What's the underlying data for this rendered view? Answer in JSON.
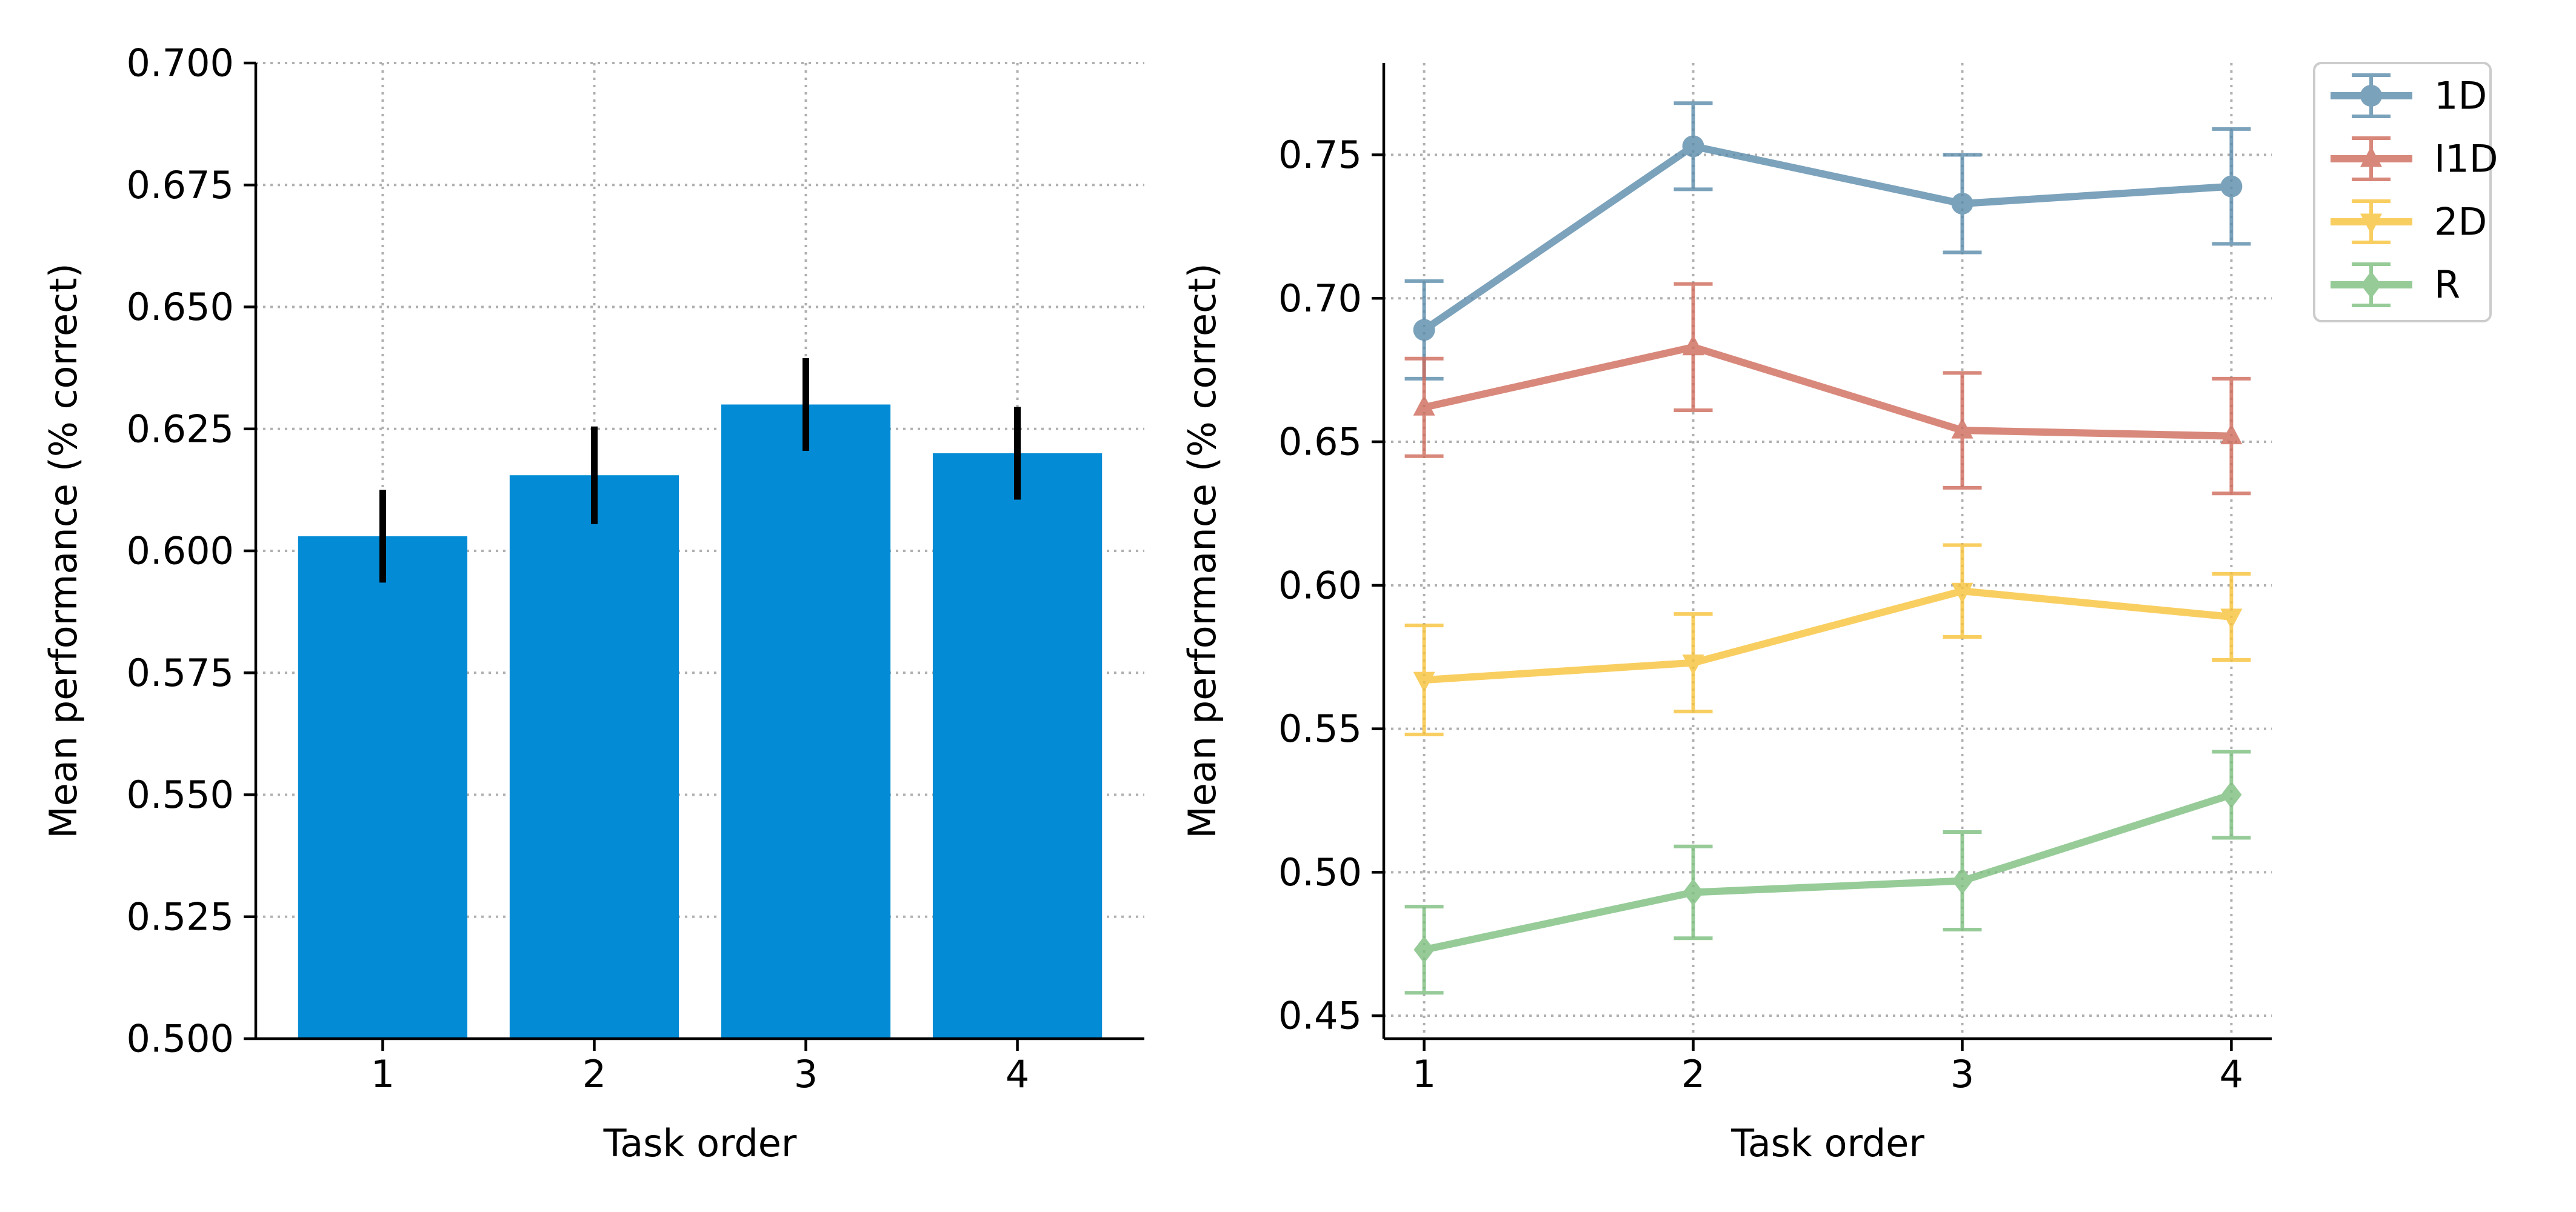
{
  "chart_data": [
    {
      "type": "bar",
      "categories": [
        "1",
        "2",
        "3",
        "4"
      ],
      "values": [
        0.603,
        0.6155,
        0.63,
        0.62
      ],
      "errors": [
        0.0095,
        0.01,
        0.0095,
        0.0095
      ],
      "xlabel": "Task order",
      "ylabel": "Mean performance (% correct)",
      "ylim": [
        0.5,
        0.7
      ],
      "yticks": [
        "0.500",
        "0.525",
        "0.550",
        "0.575",
        "0.600",
        "0.625",
        "0.650",
        "0.675",
        "0.700"
      ],
      "grid": true,
      "colors": {
        "bar": "#038bd5",
        "error": "#000000"
      }
    },
    {
      "type": "line",
      "x": [
        1,
        2,
        3,
        4
      ],
      "xticks": [
        "1",
        "2",
        "3",
        "4"
      ],
      "xlabel": "Task order",
      "ylabel": "Mean performance (% correct)",
      "ylim": [
        0.442,
        0.782
      ],
      "yticks": [
        "0.45",
        "0.50",
        "0.55",
        "0.60",
        "0.65",
        "0.70",
        "0.75"
      ],
      "grid": true,
      "legend": "outside-top-right",
      "series": [
        {
          "name": "1D",
          "marker": "circle",
          "color": "#5b8bab",
          "values": [
            0.689,
            0.753,
            0.733,
            0.739
          ],
          "errors": [
            0.017,
            0.015,
            0.017,
            0.02
          ]
        },
        {
          "name": "I1D",
          "marker": "triangle-up",
          "color": "#cf6b5b",
          "values": [
            0.662,
            0.683,
            0.654,
            0.652
          ],
          "errors": [
            0.017,
            0.022,
            0.02,
            0.02
          ]
        },
        {
          "name": "2D",
          "marker": "triangle-down",
          "color": "#f8c33a",
          "values": [
            0.567,
            0.573,
            0.598,
            0.589
          ],
          "errors": [
            0.019,
            0.017,
            0.016,
            0.015
          ]
        },
        {
          "name": "R",
          "marker": "diamond",
          "color": "#7dbf7f",
          "values": [
            0.473,
            0.493,
            0.497,
            0.527
          ],
          "errors": [
            0.015,
            0.016,
            0.017,
            0.015
          ]
        }
      ]
    }
  ]
}
